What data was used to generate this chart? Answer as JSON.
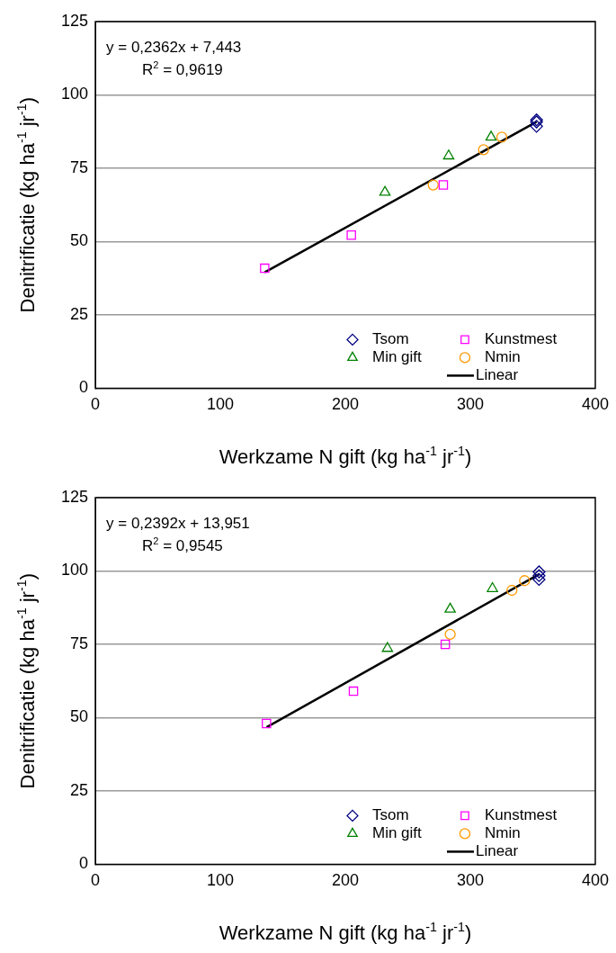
{
  "chart_data": [
    {
      "type": "scatter",
      "xlabel": "Werkzame N gift (kg ha$^{-1}$ jr$^{-1}$)",
      "ylabel": "Denitrificatie (kg ha$^{-1}$ jr$^{-1}$)",
      "annotations": [
        "y = 0,2362x + 7,443",
        "R$^{2}$ = 0,9619"
      ],
      "xlim": [
        0,
        400
      ],
      "xticks": [
        0,
        100,
        200,
        300,
        400
      ],
      "ylim": [
        0,
        125
      ],
      "yticks": [
        0,
        25,
        50,
        75,
        100,
        125
      ],
      "grid": "y",
      "legend": "bottom right",
      "series": [
        {
          "name": "Tsom",
          "color": "#000080",
          "marker": "diamond",
          "x": [
            353,
            353,
            353
          ],
          "values": [
            91.5,
            90.8,
            89.3
          ]
        },
        {
          "name": "Kunstmest",
          "color": "#ff00ff",
          "marker": "square",
          "x": [
            135.5,
            204.8,
            278.4
          ],
          "values": [
            40.9,
            52.2,
            69.3
          ]
        },
        {
          "name": "Min gift",
          "color": "#008000",
          "marker": "triangle",
          "x": [
            231.7,
            282.7,
            316.6
          ],
          "values": [
            66.8,
            79.2,
            85.6
          ]
        },
        {
          "name": "Nmin",
          "color": "#ff9900",
          "marker": "circle",
          "x": [
            270.3,
            310.6,
            325.2
          ],
          "values": [
            69.3,
            81.3,
            85.6
          ]
        },
        {
          "name": "Linear",
          "type": "line",
          "color": "#000000",
          "marker": "none",
          "line_style": "solid",
          "x": [
            135.5,
            353
          ],
          "values": [
            39.5,
            90.8
          ]
        }
      ]
    },
    {
      "type": "scatter",
      "xlabel": "Werkzame N gift (kg ha$^{-1}$ jr$^{-1}$)",
      "ylabel": "Denitrificatie (kg ha$^{-1}$ jr$^{-1}$)",
      "annotations": [
        "y = 0,2392x + 13,951",
        "R$^{2}$ = 0,9545"
      ],
      "xlim": [
        0,
        400
      ],
      "xticks": [
        0,
        100,
        200,
        300,
        400
      ],
      "ylim": [
        0,
        125
      ],
      "yticks": [
        0,
        25,
        50,
        75,
        100,
        125
      ],
      "grid": "y",
      "legend": "bottom right",
      "series": [
        {
          "name": "Tsom",
          "color": "#000080",
          "marker": "diamond",
          "x": [
            355,
            355,
            355
          ],
          "values": [
            99.7,
            98.4,
            97.1
          ]
        },
        {
          "name": "Kunstmest",
          "color": "#ff00ff",
          "marker": "square",
          "x": [
            136.9,
            206.5,
            280
          ],
          "values": [
            48.0,
            59.0,
            75.0
          ]
        },
        {
          "name": "Min gift",
          "color": "#008000",
          "marker": "triangle",
          "x": [
            233.7,
            283.9,
            317.7
          ],
          "values": [
            73.6,
            87.0,
            94.0
          ]
        },
        {
          "name": "Nmin",
          "color": "#ff9900",
          "marker": "circle",
          "x": [
            283.9,
            333.3,
            343.4
          ],
          "values": [
            78.4,
            93.4,
            96.7
          ]
        },
        {
          "name": "Linear",
          "type": "line",
          "color": "#000000",
          "marker": "none",
          "line_style": "solid",
          "x": [
            137,
            355
          ],
          "values": [
            46.7,
            98.9
          ]
        }
      ]
    }
  ]
}
